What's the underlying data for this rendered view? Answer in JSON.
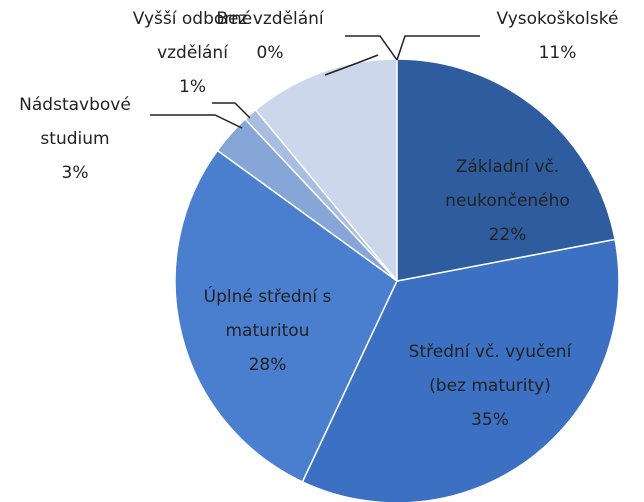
{
  "chart_data": {
    "type": "pie",
    "categories": [
      "Základní vč. neukončeného",
      "Střední vč. vyučení (bez maturity)",
      "Úplné střední s maturitou",
      "Nádstavbové studium",
      "Vyšší odborné vzdělání",
      "Bez vzdělání",
      "Vysokoškolské"
    ],
    "values": [
      22,
      35,
      28,
      3,
      1,
      0,
      11
    ],
    "value_labels": [
      "22%",
      "35%",
      "28%",
      "3%",
      "1%",
      "0%",
      "11%"
    ],
    "colors": [
      "#2f5c9e",
      "#3b70c2",
      "#4a7fcf",
      "#86a6d8",
      "#a9bde0",
      "#c0cde6",
      "#cdd7ec"
    ]
  }
}
